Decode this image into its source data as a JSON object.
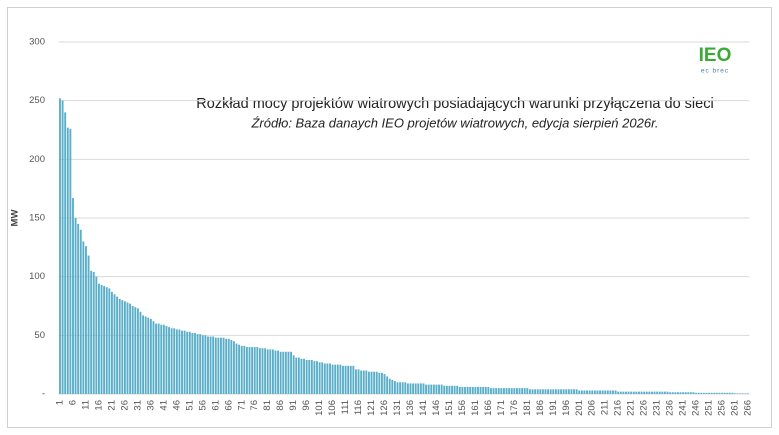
{
  "chart_data": {
    "type": "bar",
    "title": "Rozkład mocy projektów wiatrowych posiadających warunki przyłączena do sieci",
    "subtitle": "Źródło: Baza  danaych IEO projetów wiatrowych, edycja sierpień 2026r.",
    "y_label": "MW",
    "color": "#5aaec9",
    "grid": true,
    "ylim": [
      0,
      300
    ],
    "yticks": [
      {
        "value": 0,
        "label": "-"
      },
      50,
      100,
      150,
      200,
      250,
      300
    ],
    "categories": [
      1,
      null,
      null,
      null,
      null,
      6,
      null,
      null,
      null,
      null,
      11,
      null,
      null,
      null,
      null,
      16,
      null,
      null,
      null,
      null,
      21,
      null,
      null,
      null,
      null,
      26,
      null,
      null,
      null,
      null,
      31,
      null,
      null,
      null,
      null,
      36,
      null,
      null,
      null,
      null,
      41,
      null,
      null,
      null,
      null,
      46,
      null,
      null,
      null,
      null,
      51,
      null,
      null,
      null,
      null,
      56,
      null,
      null,
      null,
      null,
      61,
      null,
      null,
      null,
      null,
      66,
      null,
      null,
      null,
      null,
      71,
      null,
      null,
      null,
      null,
      76,
      null,
      null,
      null,
      null,
      81,
      null,
      null,
      null,
      null,
      86,
      null,
      null,
      null,
      null,
      91,
      null,
      null,
      null,
      null,
      96,
      null,
      null,
      null,
      null,
      101,
      null,
      null,
      null,
      null,
      106,
      null,
      null,
      null,
      null,
      111,
      null,
      null,
      null,
      null,
      116,
      null,
      null,
      null,
      null,
      121,
      null,
      null,
      null,
      null,
      126,
      null,
      null,
      null,
      null,
      131,
      null,
      null,
      null,
      null,
      136,
      null,
      null,
      null,
      null,
      141,
      null,
      null,
      null,
      null,
      146,
      null,
      null,
      null,
      null,
      151,
      null,
      null,
      null,
      null,
      156,
      null,
      null,
      null,
      null,
      161,
      null,
      null,
      null,
      null,
      166,
      null,
      null,
      null,
      null,
      171,
      null,
      null,
      null,
      null,
      176,
      null,
      null,
      null,
      null,
      181,
      null,
      null,
      null,
      null,
      186,
      null,
      null,
      null,
      null,
      191,
      null,
      null,
      null,
      null,
      196,
      null,
      null,
      null,
      null,
      201,
      null,
      null,
      null,
      null,
      206,
      null,
      null,
      null,
      null,
      211,
      null,
      null,
      null,
      null,
      216,
      null,
      null,
      null,
      null,
      221,
      null,
      null,
      null,
      null,
      226,
      null,
      null,
      null,
      null,
      231,
      null,
      null,
      null,
      null,
      236,
      null,
      null,
      null,
      null,
      241,
      null,
      null,
      null,
      null,
      246,
      null,
      null,
      null,
      null,
      251,
      null,
      null,
      null,
      null,
      256,
      null,
      null,
      null,
      null,
      261,
      null,
      null,
      null,
      null,
      266
    ],
    "values": [
      252,
      250,
      240,
      227,
      226,
      167,
      150,
      145,
      140,
      130,
      126,
      118,
      105,
      104,
      100,
      94,
      93,
      92,
      91,
      90,
      87,
      85,
      83,
      81,
      80,
      79,
      78,
      77,
      75,
      74,
      73,
      70,
      67,
      66,
      65,
      64,
      62,
      60,
      60,
      59,
      59,
      58,
      57,
      56,
      56,
      55,
      55,
      54,
      54,
      53,
      53,
      52,
      52,
      51,
      51,
      50,
      50,
      49,
      49,
      49,
      48,
      48,
      48,
      48,
      47,
      47,
      46,
      45,
      43,
      42,
      41,
      41,
      40,
      40,
      40,
      40,
      40,
      39,
      39,
      39,
      38,
      38,
      38,
      37,
      37,
      36,
      36,
      36,
      36,
      36,
      33,
      31,
      31,
      30,
      30,
      29,
      29,
      29,
      28,
      28,
      27,
      27,
      26,
      26,
      26,
      25,
      25,
      25,
      25,
      24,
      24,
      24,
      24,
      24,
      21,
      21,
      20,
      20,
      20,
      19,
      19,
      19,
      19,
      18,
      18,
      17,
      15,
      13,
      12,
      11,
      10,
      10,
      10,
      10,
      9,
      9,
      9,
      9,
      9,
      9,
      9,
      8,
      8,
      8,
      8,
      8,
      8,
      8,
      7,
      7,
      7,
      7,
      7,
      7,
      6,
      6,
      6,
      6,
      6,
      6,
      6,
      6,
      6,
      6,
      6,
      6,
      5,
      5,
      5,
      5,
      5,
      5,
      5,
      5,
      5,
      5,
      5,
      5,
      5,
      5,
      5,
      4,
      4,
      4,
      4,
      4,
      4,
      4,
      4,
      4,
      4,
      4,
      4,
      4,
      4,
      4,
      4,
      4,
      4,
      4,
      3,
      3,
      3,
      3,
      3,
      3,
      3,
      3,
      3,
      3,
      3,
      3,
      3,
      3,
      3,
      2,
      2,
      2,
      2,
      2,
      2,
      2,
      2,
      2,
      2,
      2,
      2,
      2,
      2,
      2,
      2,
      2,
      2,
      2,
      2,
      1.5,
      1.5,
      1.5,
      1.5,
      1.5,
      1.5,
      1.5,
      1.5,
      1.5,
      1.5,
      1,
      1,
      1,
      1,
      1,
      1,
      1,
      1,
      1,
      1,
      1,
      1,
      1,
      1,
      1,
      0.5,
      0.5,
      0.5,
      0.5,
      0.5,
      0.5
    ]
  },
  "logo": {
    "text": "IEO",
    "subtitle": "ec brec"
  }
}
